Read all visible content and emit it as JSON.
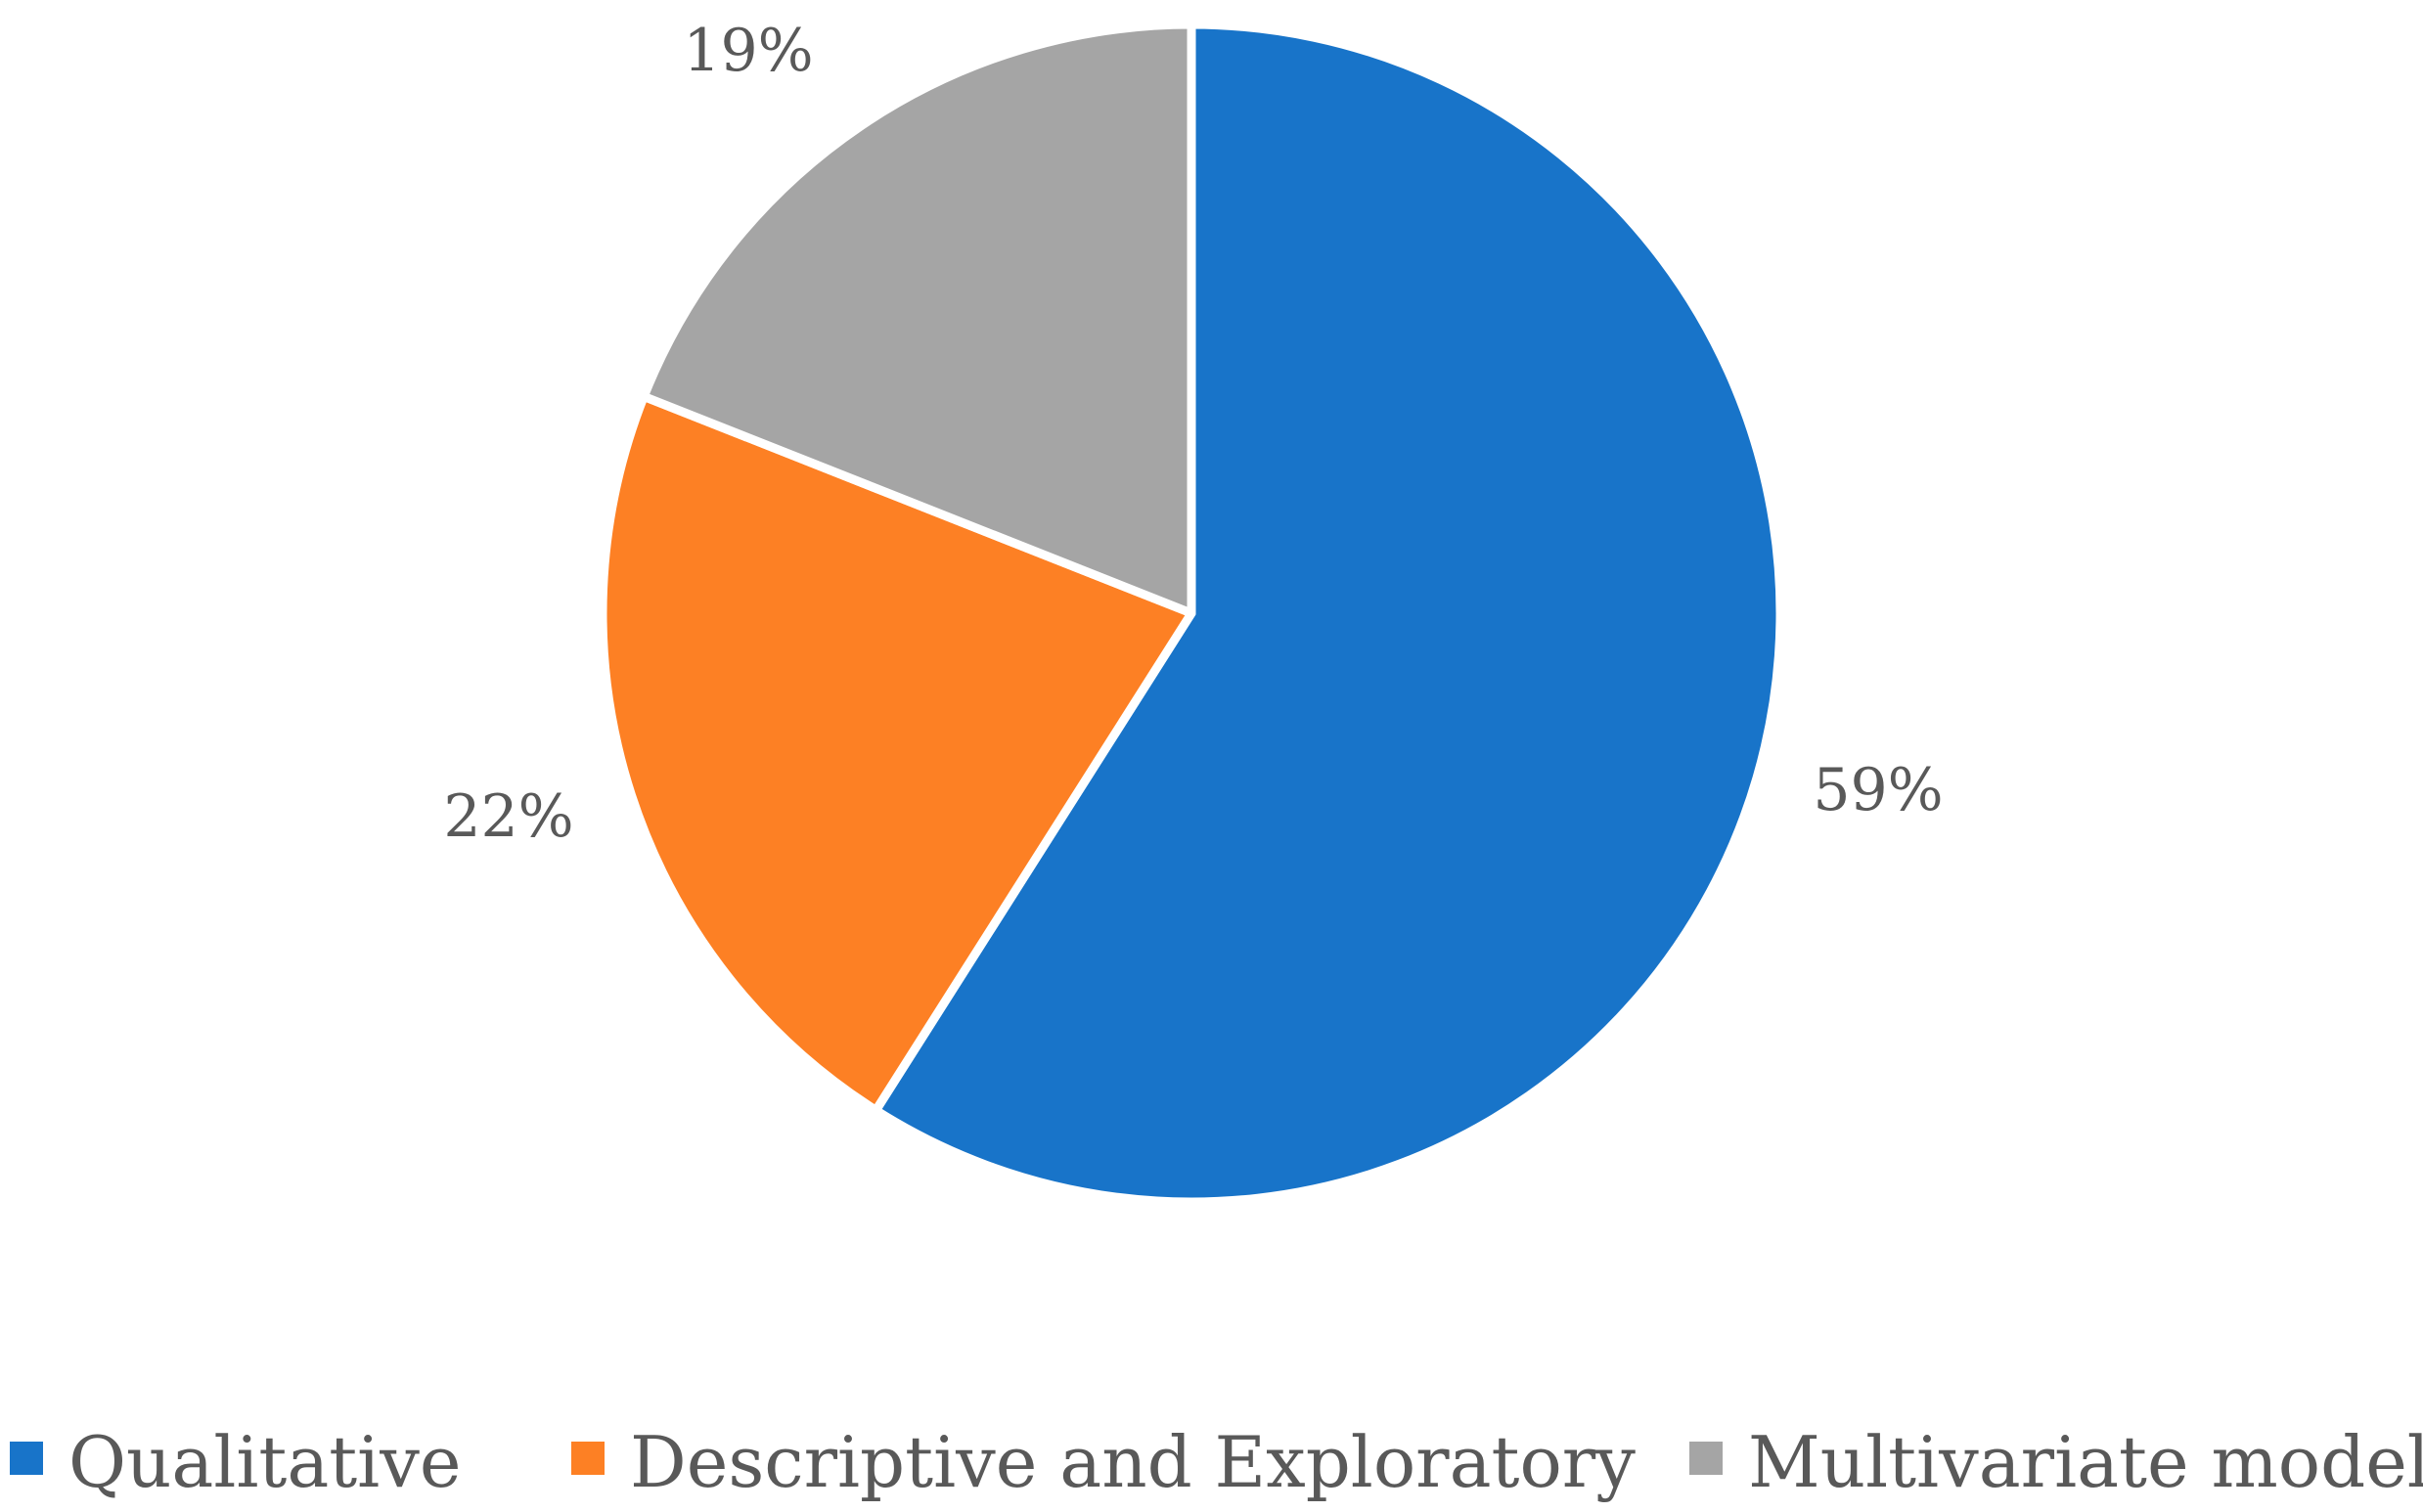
{
  "chart_data": {
    "type": "pie",
    "categories": [
      "Qualitative",
      "Descriptive and Exploratory",
      "Multivariate models"
    ],
    "values": [
      59,
      22,
      19
    ],
    "data_labels": [
      "59%",
      "22%",
      "19%"
    ],
    "colors": [
      "#1874C9",
      "#FD8024",
      "#A5A5A5"
    ],
    "legend_position": "bottom",
    "start_angle": "12 o'clock",
    "direction": "clockwise"
  }
}
